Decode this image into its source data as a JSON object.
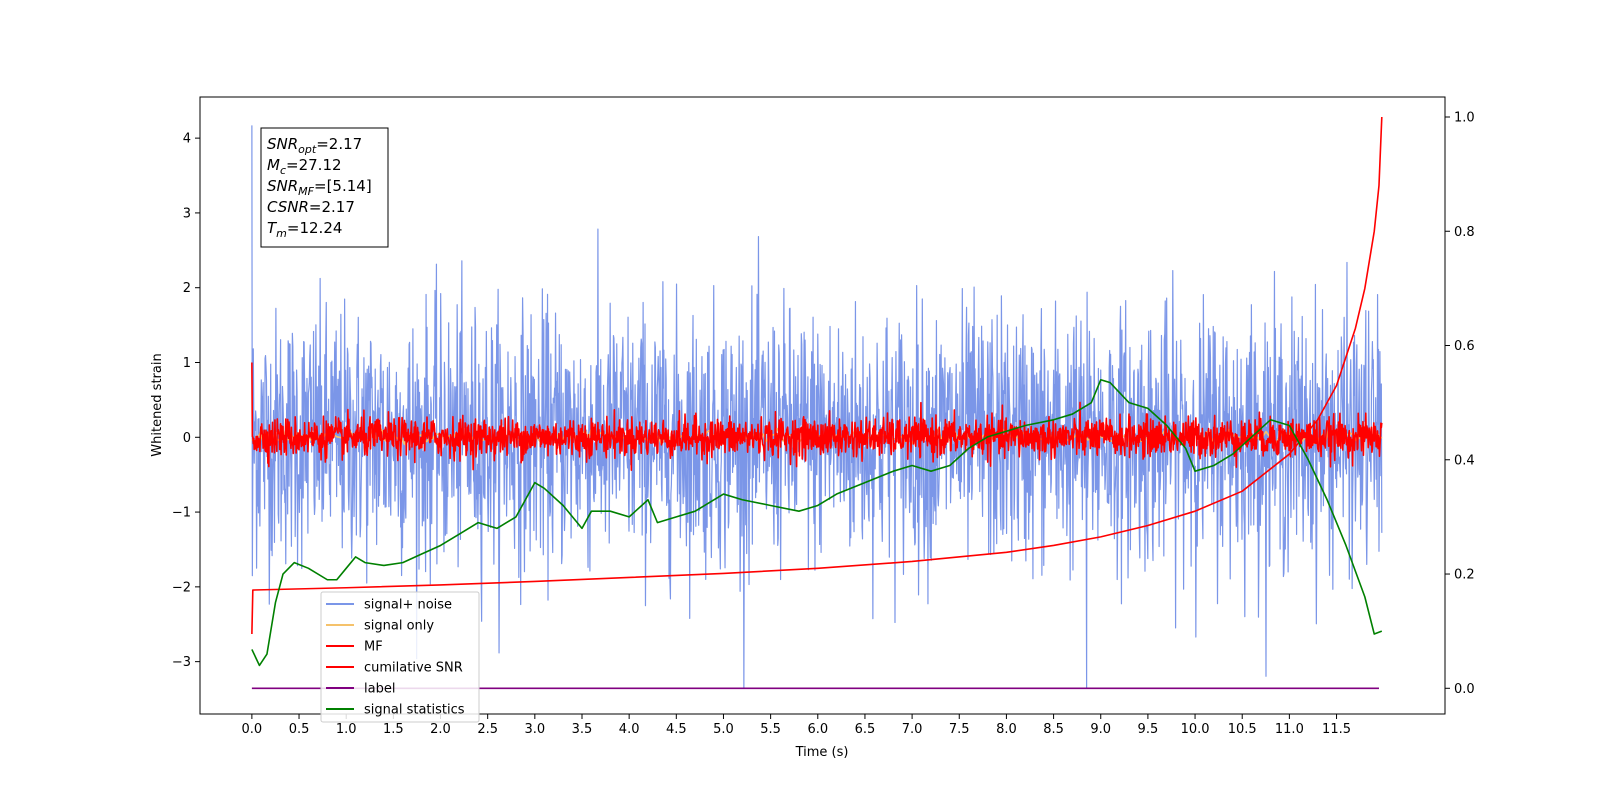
{
  "chart_data": {
    "type": "line",
    "title": "",
    "xlabel": "Time (s)",
    "ylabel": "Whitened strain",
    "xlim": [
      -0.55,
      12.65
    ],
    "ylim": [
      -3.7,
      4.55
    ],
    "y2lim": [
      -0.045,
      1.035
    ],
    "x_ticks": [
      0.0,
      0.5,
      1.0,
      1.5,
      2.0,
      2.5,
      3.0,
      3.5,
      4.0,
      4.5,
      5.0,
      5.5,
      6.0,
      6.5,
      7.0,
      7.5,
      8.0,
      8.5,
      9.0,
      9.5,
      10.0,
      10.5,
      11.0,
      11.5
    ],
    "x_tick_labels": [
      "0.0",
      "0.5",
      "1.0",
      "1.5",
      "2.0",
      "2.5",
      "3.0",
      "3.5",
      "4.0",
      "4.5",
      "5.0",
      "5.5",
      "6.0",
      "6.5",
      "7.0",
      "7.5",
      "8.0",
      "8.5",
      "9.0",
      "9.5",
      "10.0",
      "10.5",
      "11.0",
      "11.5"
    ],
    "y_ticks": [
      -3,
      -2,
      -1,
      0,
      1,
      2,
      3,
      4
    ],
    "y_tick_labels": [
      "−3",
      "−2",
      "−1",
      "0",
      "1",
      "2",
      "3",
      "4"
    ],
    "y2_ticks": [
      0.0,
      0.2,
      0.4,
      0.6,
      0.8,
      1.0
    ],
    "y2_tick_labels": [
      "0.0",
      "0.2",
      "0.4",
      "0.6",
      "0.8",
      "1.0"
    ],
    "grid": false,
    "legend_position": "lower-left",
    "annotation": {
      "lines": [
        {
          "base": "SNR",
          "sub": "opt",
          "value": "=2.17"
        },
        {
          "base": "M",
          "sub": "c",
          "value": "=27.12"
        },
        {
          "base": "SNR",
          "sub": "MF",
          "value": "=[5.14]"
        },
        {
          "base": "CSNR",
          "sub": "",
          "value": "=2.17"
        },
        {
          "base": "T",
          "sub": "m",
          "value": "=12.24"
        }
      ]
    },
    "series": [
      {
        "name": "signal+ noise",
        "color": "#7b96e8",
        "axis": "left",
        "style": "noise",
        "x_range": [
          0.0,
          11.98
        ],
        "amplitude": 0.85,
        "min": -3.35,
        "max": 4.17
      },
      {
        "name": "signal only",
        "color": "#f5c26b",
        "axis": "left",
        "style": "flat",
        "x_range": [
          0.0,
          11.98
        ],
        "amplitude": 0.04
      },
      {
        "name": "MF",
        "color": "#ff0000",
        "axis": "left",
        "style": "noise",
        "x_range": [
          0.0,
          11.98
        ],
        "amplitude": 0.13,
        "start_value": 1.0
      },
      {
        "name": "cumilative SNR",
        "color": "#ff0000",
        "axis": "right",
        "x": [
          0.0,
          0.01,
          1.0,
          2.0,
          3.0,
          4.0,
          5.0,
          6.0,
          7.0,
          8.0,
          8.5,
          9.0,
          9.5,
          10.0,
          10.5,
          11.0,
          11.3,
          11.5,
          11.7,
          11.8,
          11.9,
          11.95,
          11.98
        ],
        "y": [
          0.095,
          0.172,
          0.176,
          0.181,
          0.187,
          0.194,
          0.201,
          0.21,
          0.222,
          0.238,
          0.25,
          0.265,
          0.285,
          0.31,
          0.345,
          0.41,
          0.47,
          0.53,
          0.63,
          0.7,
          0.8,
          0.88,
          1.0
        ]
      },
      {
        "name": "label",
        "color": "#800080",
        "axis": "right",
        "x": [
          0.0,
          11.95
        ],
        "y": [
          0.0,
          0.0
        ]
      },
      {
        "name": "signal statistics",
        "color": "#008000",
        "axis": "right",
        "x": [
          0.0,
          0.08,
          0.16,
          0.25,
          0.33,
          0.45,
          0.6,
          0.8,
          0.9,
          1.0,
          1.1,
          1.2,
          1.4,
          1.6,
          1.8,
          2.0,
          2.2,
          2.4,
          2.6,
          2.8,
          3.0,
          3.1,
          3.3,
          3.5,
          3.6,
          3.8,
          4.0,
          4.2,
          4.3,
          4.5,
          4.7,
          5.0,
          5.2,
          5.5,
          5.8,
          6.0,
          6.2,
          6.5,
          6.8,
          7.0,
          7.2,
          7.4,
          7.6,
          7.8,
          8.0,
          8.2,
          8.5,
          8.7,
          8.9,
          9.0,
          9.1,
          9.3,
          9.5,
          9.7,
          9.9,
          10.0,
          10.2,
          10.4,
          10.6,
          10.8,
          11.0,
          11.2,
          11.4,
          11.6,
          11.8,
          11.9,
          11.98
        ],
        "y": [
          0.068,
          0.04,
          0.06,
          0.15,
          0.2,
          0.22,
          0.21,
          0.19,
          0.19,
          0.21,
          0.23,
          0.22,
          0.215,
          0.22,
          0.235,
          0.25,
          0.27,
          0.29,
          0.28,
          0.3,
          0.36,
          0.35,
          0.32,
          0.28,
          0.31,
          0.31,
          0.3,
          0.33,
          0.29,
          0.3,
          0.31,
          0.34,
          0.33,
          0.32,
          0.31,
          0.32,
          0.34,
          0.36,
          0.38,
          0.39,
          0.38,
          0.39,
          0.42,
          0.44,
          0.45,
          0.46,
          0.47,
          0.48,
          0.5,
          0.54,
          0.535,
          0.5,
          0.49,
          0.46,
          0.42,
          0.38,
          0.39,
          0.41,
          0.44,
          0.47,
          0.46,
          0.4,
          0.33,
          0.25,
          0.16,
          0.095,
          0.1
        ]
      }
    ]
  }
}
